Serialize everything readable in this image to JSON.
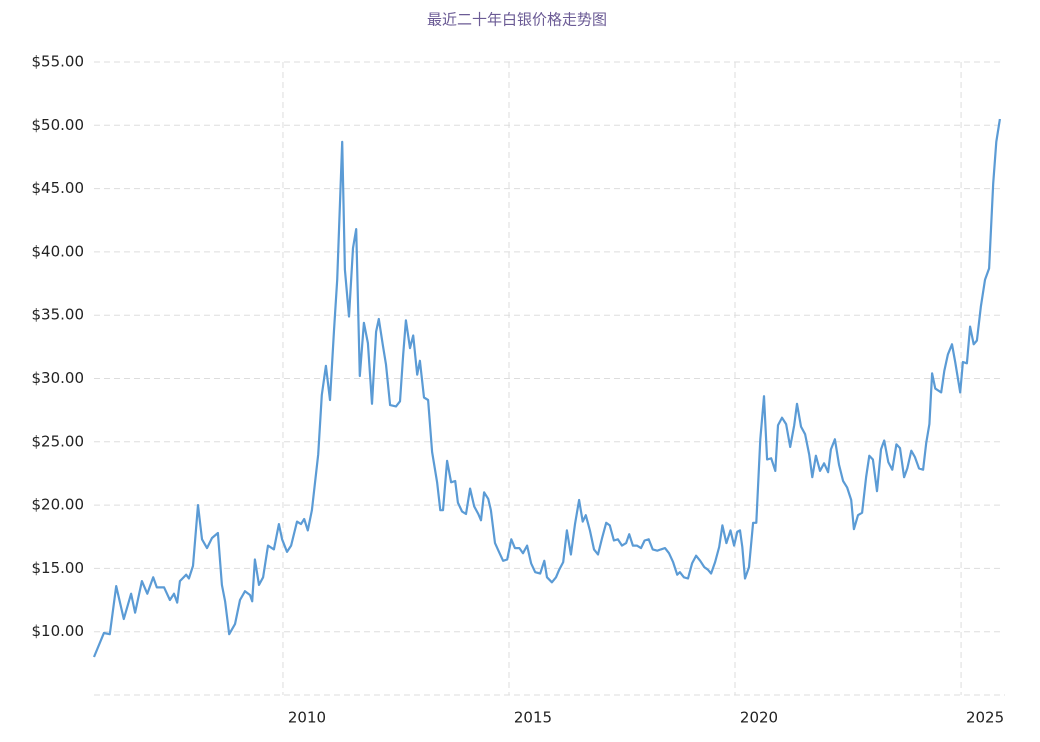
{
  "chart_data": {
    "type": "line",
    "title": "最近二十年白银价格走势图",
    "x": [
      2005.82,
      2006.04,
      2006.17,
      2006.31,
      2006.48,
      2006.64,
      2006.73,
      2006.88,
      2007.0,
      2007.13,
      2007.21,
      2007.37,
      2007.5,
      2007.59,
      2007.66,
      2007.72,
      2007.86,
      2007.92,
      2008.01,
      2008.12,
      2008.21,
      2008.32,
      2008.43,
      2008.56,
      2008.65,
      2008.72,
      2008.81,
      2008.94,
      2009.05,
      2009.16,
      2009.27,
      2009.32,
      2009.38,
      2009.47,
      2009.56,
      2009.67,
      2009.8,
      2009.91,
      2009.98,
      2010.09,
      2010.18,
      2010.31,
      2010.4,
      2010.47,
      2010.55,
      2010.64,
      2010.78,
      2010.86,
      2010.95,
      2011.04,
      2011.13,
      2011.2,
      2011.31,
      2011.37,
      2011.46,
      2011.55,
      2011.62,
      2011.7,
      2011.79,
      2011.88,
      2011.97,
      2012.06,
      2012.12,
      2012.21,
      2012.28,
      2012.37,
      2012.5,
      2012.59,
      2012.66,
      2012.72,
      2012.81,
      2012.88,
      2012.97,
      2013.03,
      2013.12,
      2013.21,
      2013.3,
      2013.41,
      2013.48,
      2013.54,
      2013.63,
      2013.72,
      2013.81,
      2013.87,
      2013.96,
      2014.05,
      2014.14,
      2014.23,
      2014.32,
      2014.38,
      2014.45,
      2014.54,
      2014.6,
      2014.69,
      2014.78,
      2014.87,
      2014.96,
      2015.05,
      2015.13,
      2015.23,
      2015.31,
      2015.4,
      2015.49,
      2015.58,
      2015.69,
      2015.78,
      2015.84,
      2015.95,
      2016.04,
      2016.11,
      2016.2,
      2016.28,
      2016.37,
      2016.46,
      2016.55,
      2016.63,
      2016.7,
      2016.79,
      2016.88,
      2016.97,
      2017.06,
      2017.15,
      2017.23,
      2017.32,
      2017.41,
      2017.5,
      2017.59,
      2017.66,
      2017.74,
      2017.83,
      2017.92,
      2018.0,
      2018.09,
      2018.18,
      2018.28,
      2018.36,
      2018.45,
      2018.54,
      2018.63,
      2018.72,
      2018.78,
      2018.87,
      2018.96,
      2019.05,
      2019.14,
      2019.23,
      2019.32,
      2019.4,
      2019.47,
      2019.56,
      2019.65,
      2019.72,
      2019.81,
      2019.9,
      2019.98,
      2020.05,
      2020.11,
      2020.16,
      2020.22,
      2020.31,
      2020.4,
      2020.47,
      2020.56,
      2020.64,
      2020.71,
      2020.8,
      2020.89,
      2020.95,
      2021.04,
      2021.13,
      2021.22,
      2021.31,
      2021.37,
      2021.46,
      2021.55,
      2021.64,
      2021.71,
      2021.79,
      2021.88,
      2021.97,
      2022.06,
      2022.12,
      2022.21,
      2022.3,
      2022.39,
      2022.48,
      2022.57,
      2022.63,
      2022.72,
      2022.81,
      2022.9,
      2022.97,
      2023.05,
      2023.14,
      2023.23,
      2023.3,
      2023.39,
      2023.48,
      2023.57,
      2023.65,
      2023.74,
      2023.81,
      2023.9,
      2023.98,
      2024.07,
      2024.16,
      2024.23,
      2024.3,
      2024.36,
      2024.43,
      2024.56,
      2024.63,
      2024.71,
      2024.8,
      2024.87,
      2024.98,
      2025.04,
      2025.13,
      2025.2,
      2025.28,
      2025.35,
      2025.44,
      2025.53,
      2025.62,
      2025.71,
      2025.78,
      2025.86
    ],
    "values": [
      8.0,
      9.9,
      9.8,
      13.6,
      11.0,
      13.0,
      11.5,
      14.0,
      13.0,
      14.3,
      13.5,
      13.5,
      12.5,
      13.0,
      12.3,
      14.0,
      14.5,
      14.2,
      15.2,
      20.0,
      17.3,
      16.6,
      17.4,
      17.8,
      13.7,
      12.4,
      9.8,
      10.6,
      12.5,
      13.2,
      12.9,
      12.4,
      15.7,
      13.7,
      14.3,
      16.8,
      16.5,
      18.5,
      17.3,
      16.3,
      16.8,
      18.7,
      18.5,
      18.9,
      18.0,
      19.6,
      24.0,
      28.7,
      31.0,
      28.3,
      33.8,
      37.8,
      48.7,
      38.6,
      34.9,
      40.3,
      41.8,
      30.2,
      34.4,
      32.8,
      28.0,
      33.7,
      34.7,
      32.6,
      31.1,
      27.9,
      27.8,
      28.2,
      31.9,
      34.6,
      32.4,
      33.4,
      30.3,
      31.4,
      28.5,
      28.3,
      24.2,
      21.8,
      19.6,
      19.6,
      23.5,
      21.8,
      21.9,
      20.2,
      19.5,
      19.3,
      21.3,
      19.9,
      19.3,
      18.8,
      21.0,
      20.5,
      19.6,
      17.0,
      16.3,
      15.6,
      15.7,
      17.3,
      16.6,
      16.6,
      16.2,
      16.8,
      15.4,
      14.7,
      14.6,
      15.6,
      14.3,
      13.9,
      14.3,
      14.9,
      15.5,
      18.0,
      16.1,
      18.5,
      20.4,
      18.7,
      19.2,
      18.0,
      16.5,
      16.1,
      17.4,
      18.6,
      18.4,
      17.2,
      17.3,
      16.8,
      17.0,
      17.7,
      16.8,
      16.8,
      16.6,
      17.2,
      17.3,
      16.5,
      16.4,
      16.5,
      16.6,
      16.2,
      15.5,
      14.5,
      14.7,
      14.3,
      14.2,
      15.4,
      16.0,
      15.6,
      15.1,
      14.9,
      14.6,
      15.5,
      16.7,
      18.4,
      17.0,
      18.0,
      16.8,
      17.9,
      18.0,
      16.7,
      14.2,
      15.1,
      18.6,
      18.6,
      25.2,
      28.6,
      23.6,
      23.7,
      22.7,
      26.3,
      26.9,
      26.4,
      24.6,
      26.3,
      28.0,
      26.2,
      25.6,
      24.0,
      22.2,
      23.9,
      22.7,
      23.3,
      22.6,
      24.4,
      25.2,
      23.2,
      21.9,
      21.4,
      20.4,
      18.1,
      19.2,
      19.4,
      22.2,
      23.9,
      23.6,
      21.1,
      24.4,
      25.1,
      23.4,
      22.8,
      24.8,
      24.5,
      22.2,
      22.9,
      24.3,
      23.8,
      22.9,
      22.8,
      24.9,
      26.4,
      30.4,
      29.2,
      28.9,
      30.6,
      31.9,
      32.7,
      31.3,
      28.9,
      31.3,
      31.2,
      34.1,
      32.7,
      33.0,
      35.7,
      37.8,
      38.7,
      45.4,
      48.7,
      50.5
    ],
    "color": "#5b9bd5",
    "xlim": [
      2005.82,
      2025.95
    ],
    "xticks": [
      2010,
      2015,
      2020,
      2025
    ],
    "ylim": [
      5,
      55
    ],
    "yticks": [
      {
        "value": 10,
        "label": "$10.00"
      },
      {
        "value": 15,
        "label": "$15.00"
      },
      {
        "value": 20,
        "label": "$20.00"
      },
      {
        "value": 25,
        "label": "$25.00"
      },
      {
        "value": 30,
        "label": "$30.00"
      },
      {
        "value": 35,
        "label": "$35.00"
      },
      {
        "value": 40,
        "label": "$40.00"
      },
      {
        "value": 45,
        "label": "$45.00"
      },
      {
        "value": 50,
        "label": "$50.00"
      },
      {
        "value": 55,
        "label": "$55.00"
      }
    ],
    "grid": true
  }
}
